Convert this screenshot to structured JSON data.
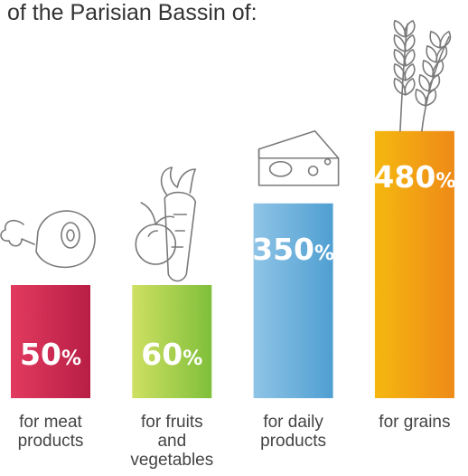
{
  "heading": "of the Parisian Bassin of:",
  "chart_data": {
    "type": "bar",
    "categories": [
      [
        "for meat",
        "products"
      ],
      [
        "for fruits",
        "and",
        "vegetables"
      ],
      [
        "for daily",
        "products"
      ],
      [
        "for grains"
      ]
    ],
    "values": [
      50,
      60,
      350,
      480
    ],
    "value_labels": [
      {
        "number": "50",
        "unit": "%"
      },
      {
        "number": "60",
        "unit": "%"
      },
      {
        "number": "350",
        "unit": "%"
      },
      {
        "number": "480",
        "unit": "%"
      }
    ],
    "icons": [
      "meat-ham-icon",
      "fruit-vegetable-icon",
      "cheese-icon",
      "wheat-icon"
    ],
    "colors": [
      [
        "#e23a5f",
        "#b81e45"
      ],
      [
        "#cfe063",
        "#7fbf3a"
      ],
      [
        "#8fc4e6",
        "#4f9fd2"
      ],
      [
        "#f5b80f",
        "#ee8a18"
      ]
    ]
  }
}
